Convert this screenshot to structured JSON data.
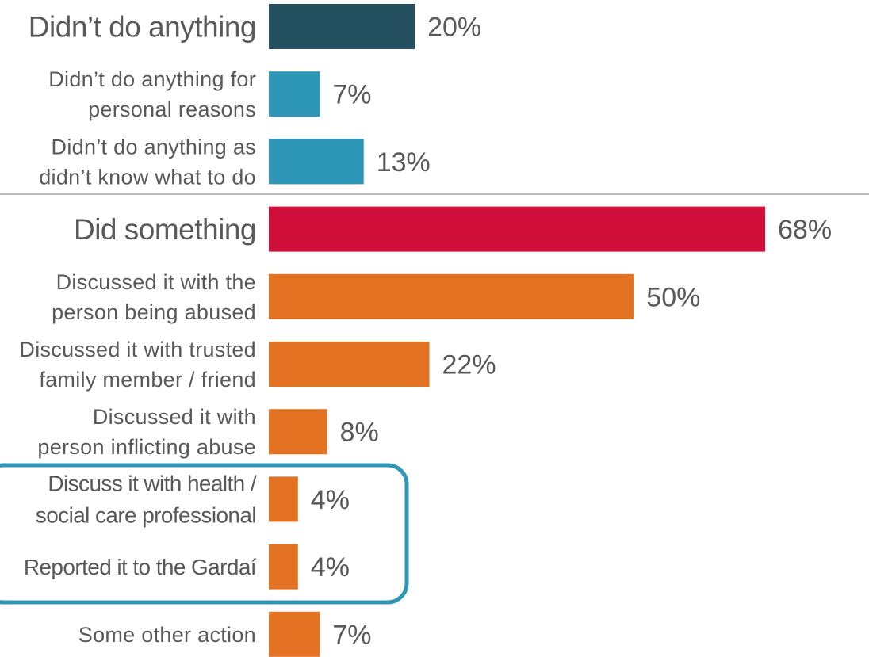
{
  "chart_data": {
    "type": "bar",
    "orientation": "horizontal",
    "value_unit": "%",
    "xlim": [
      0,
      68
    ],
    "grid": false,
    "legend": "none",
    "categories": [
      "Didn’t do anything",
      "Didn’t do anything for personal reasons",
      "Didn’t do anything as didn’t know what to do",
      "Did something",
      "Discussed it with the person being abused",
      "Discussed it with trusted family member / friend",
      "Discussed it with person inflicting abuse",
      "Discuss it with health / social care professional",
      "Reported it to the Gardaí",
      "Some other action"
    ],
    "values": [
      20,
      7,
      13,
      68,
      50,
      22,
      8,
      4,
      4,
      7
    ],
    "value_labels": [
      "20%",
      "7%",
      "13%",
      "68%",
      "50%",
      "22%",
      "8%",
      "4%",
      "4%",
      "7%"
    ],
    "label_lines": [
      [
        "Didn’t do anything"
      ],
      [
        "Didn’t do anything for",
        "personal reasons"
      ],
      [
        "Didn’t do anything as",
        "didn’t know what to do"
      ],
      [
        "Did something"
      ],
      [
        "Discussed it with the",
        "person being abused"
      ],
      [
        "Discussed it with trusted",
        "family member / friend"
      ],
      [
        "Discussed it with",
        "person inflicting abuse"
      ],
      [
        "Discuss it with health /",
        "social care professional"
      ],
      [
        "Reported it to the Gardaí"
      ],
      [
        "Some other action"
      ]
    ],
    "bar_colors": [
      "#234f5f",
      "#2e96b6",
      "#2e96b6",
      "#d0103a",
      "#e37222",
      "#e37222",
      "#e37222",
      "#e37222",
      "#e37222",
      "#e37222"
    ],
    "label_colors": [
      "#234f5f",
      "#595959",
      "#595959",
      "#d0103a",
      "#595959",
      "#595959",
      "#595959",
      "#262626",
      "#262626",
      "#595959"
    ],
    "label_emphasis": [
      "heading",
      "normal",
      "normal",
      "heading",
      "normal",
      "normal",
      "normal",
      "highlight",
      "highlight",
      "normal"
    ],
    "highlighted_categories": [
      "Discuss it with health / social care professional",
      "Reported it to the Gardaí"
    ],
    "highlight_color": "#2e96b6",
    "separator_after_category": "Didn’t do anything as didn’t know what to do"
  }
}
